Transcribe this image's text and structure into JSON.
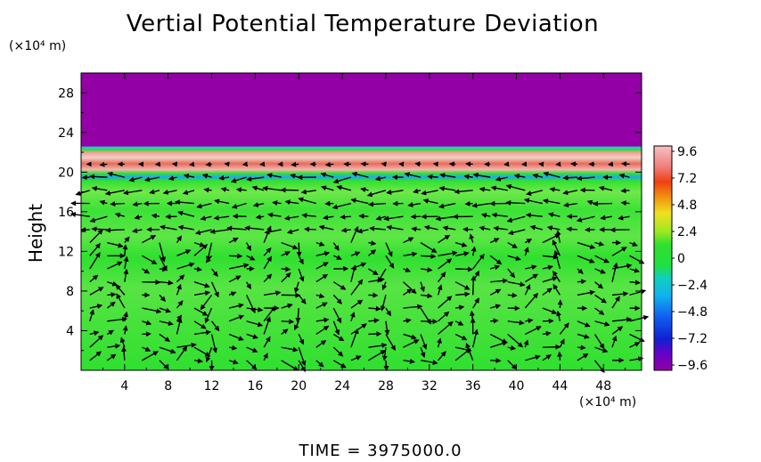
{
  "chart_data": {
    "type": "heatmap",
    "title": "Vertial Potential Temperature Deviation",
    "ylabel": "Height",
    "y_unit": "(×10⁴ m)",
    "x_unit": "(×10⁴ m)",
    "xlim": [
      0,
      51.5
    ],
    "ylim": [
      0,
      30
    ],
    "x_ticks": [
      "4",
      "8",
      "12",
      "16",
      "20",
      "24",
      "28",
      "32",
      "36",
      "40",
      "44",
      "48"
    ],
    "y_ticks": [
      "4",
      "8",
      "12",
      "16",
      "20",
      "24",
      "28"
    ],
    "colorbar": {
      "range": [
        -9.6,
        9.6
      ],
      "labels": [
        "9.6",
        "7.2",
        "4.8",
        "2.4",
        "0",
        "−2.4",
        "−4.8",
        "−7.2",
        "−9.6"
      ]
    },
    "layers": [
      {
        "from": 0,
        "to": 19.5,
        "value": 0,
        "color": "#2fe02f"
      },
      {
        "from": 19.5,
        "to": 22.5,
        "value": 9.6,
        "color": "#f4b6b0"
      },
      {
        "from": 22.5,
        "to": 30,
        "value": -9.6,
        "color": "#9200a6"
      }
    ],
    "overlay": "wind vectors (arrows)",
    "grid": false,
    "legend": "right"
  },
  "footer": {
    "time_label": "TIME  =  3975000.0"
  }
}
